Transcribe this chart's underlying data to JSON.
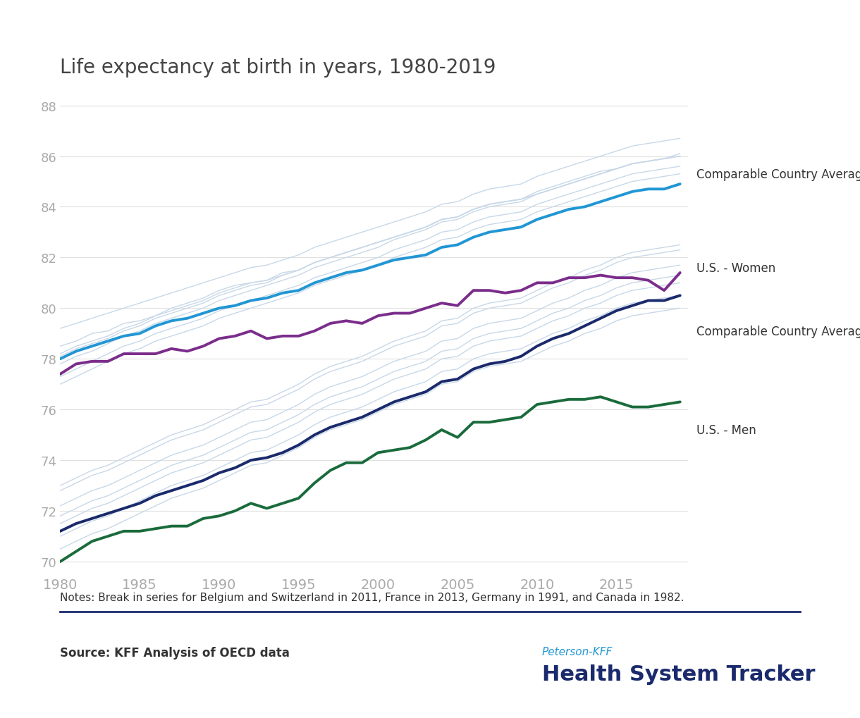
{
  "title": "Life expectancy at birth in years, 1980-2019",
  "notes": "Notes: Break in series for Belgium and Switzerland in 2011, France in 2013, Germany in 1991, and Canada in 1982.",
  "source": "Source: KFF Analysis of OECD data",
  "branding_small": "Peterson-KFF",
  "branding_large": "Health System Tracker",
  "years": [
    1980,
    1981,
    1982,
    1983,
    1984,
    1985,
    1986,
    1987,
    1988,
    1989,
    1990,
    1991,
    1992,
    1993,
    1994,
    1995,
    1996,
    1997,
    1998,
    1999,
    2000,
    2001,
    2002,
    2003,
    2004,
    2005,
    2006,
    2007,
    2008,
    2009,
    2010,
    2011,
    2012,
    2013,
    2014,
    2015,
    2016,
    2017,
    2018,
    2019
  ],
  "us_women": [
    77.4,
    77.8,
    77.9,
    77.9,
    78.2,
    78.2,
    78.2,
    78.4,
    78.3,
    78.5,
    78.8,
    78.9,
    79.1,
    78.8,
    78.9,
    78.9,
    79.1,
    79.4,
    79.5,
    79.4,
    79.7,
    79.8,
    79.8,
    80.0,
    80.2,
    80.1,
    80.7,
    80.7,
    80.6,
    80.7,
    81.0,
    81.0,
    81.2,
    81.2,
    81.3,
    81.2,
    81.2,
    81.1,
    80.7,
    81.4
  ],
  "us_men": [
    70.0,
    70.4,
    70.8,
    71.0,
    71.2,
    71.2,
    71.3,
    71.4,
    71.4,
    71.7,
    71.8,
    72.0,
    72.3,
    72.1,
    72.3,
    72.5,
    73.1,
    73.6,
    73.9,
    73.9,
    74.3,
    74.4,
    74.5,
    74.8,
    75.2,
    74.9,
    75.5,
    75.5,
    75.6,
    75.7,
    76.2,
    76.3,
    76.4,
    76.4,
    76.5,
    76.3,
    76.1,
    76.1,
    76.2,
    76.3
  ],
  "cca_women": [
    78.0,
    78.3,
    78.5,
    78.7,
    78.9,
    79.0,
    79.3,
    79.5,
    79.6,
    79.8,
    80.0,
    80.1,
    80.3,
    80.4,
    80.6,
    80.7,
    81.0,
    81.2,
    81.4,
    81.5,
    81.7,
    81.9,
    82.0,
    82.1,
    82.4,
    82.5,
    82.8,
    83.0,
    83.1,
    83.2,
    83.5,
    83.7,
    83.9,
    84.0,
    84.2,
    84.4,
    84.6,
    84.7,
    84.7,
    84.9
  ],
  "cca_men": [
    71.2,
    71.5,
    71.7,
    71.9,
    72.1,
    72.3,
    72.6,
    72.8,
    73.0,
    73.2,
    73.5,
    73.7,
    74.0,
    74.1,
    74.3,
    74.6,
    75.0,
    75.3,
    75.5,
    75.7,
    76.0,
    76.3,
    76.5,
    76.7,
    77.1,
    77.2,
    77.6,
    77.8,
    77.9,
    78.1,
    78.5,
    78.8,
    79.0,
    79.3,
    79.6,
    79.9,
    80.1,
    80.3,
    80.3,
    80.5
  ],
  "background_lines_women": [
    [
      79.2,
      79.4,
      79.6,
      79.8,
      80.0,
      80.2,
      80.4,
      80.6,
      80.8,
      81.0,
      81.2,
      81.4,
      81.6,
      81.7,
      81.9,
      82.1,
      82.4,
      82.6,
      82.8,
      83.0,
      83.2,
      83.4,
      83.6,
      83.8,
      84.1,
      84.2,
      84.5,
      84.7,
      84.8,
      84.9,
      85.2,
      85.4,
      85.6,
      85.8,
      86.0,
      86.2,
      86.4,
      86.5,
      86.6,
      86.7
    ],
    [
      78.5,
      78.7,
      79.0,
      79.1,
      79.4,
      79.5,
      79.7,
      80.0,
      80.2,
      80.4,
      80.7,
      80.9,
      81.0,
      81.1,
      81.4,
      81.5,
      81.8,
      82.0,
      82.2,
      82.4,
      82.6,
      82.8,
      83.0,
      83.2,
      83.5,
      83.6,
      83.9,
      84.1,
      84.2,
      84.3,
      84.6,
      84.8,
      85.0,
      85.2,
      85.4,
      85.5,
      85.7,
      85.8,
      85.9,
      86.1
    ],
    [
      78.2,
      78.5,
      78.7,
      78.9,
      79.2,
      79.4,
      79.7,
      79.9,
      80.1,
      80.3,
      80.6,
      80.8,
      81.0,
      81.1,
      81.3,
      81.5,
      81.8,
      82.0,
      82.2,
      82.4,
      82.6,
      82.8,
      83.0,
      83.2,
      83.5,
      83.6,
      83.9,
      84.1,
      84.2,
      84.3,
      84.5,
      84.7,
      84.9,
      85.1,
      85.3,
      85.5,
      85.7,
      85.8,
      85.9,
      86.0
    ],
    [
      77.8,
      78.1,
      78.3,
      78.6,
      78.9,
      79.1,
      79.4,
      79.6,
      79.8,
      80.0,
      80.3,
      80.5,
      80.7,
      80.9,
      81.1,
      81.3,
      81.6,
      81.8,
      82.0,
      82.2,
      82.4,
      82.7,
      82.9,
      83.1,
      83.4,
      83.5,
      83.8,
      84.0,
      84.1,
      84.2,
      84.5,
      84.7,
      84.9,
      85.1,
      85.3,
      85.5,
      85.7,
      85.8,
      85.9,
      86.0
    ],
    [
      77.3,
      77.6,
      77.9,
      78.2,
      78.5,
      78.7,
      79.0,
      79.2,
      79.4,
      79.6,
      79.9,
      80.1,
      80.3,
      80.5,
      80.7,
      80.9,
      81.2,
      81.4,
      81.6,
      81.8,
      82.0,
      82.3,
      82.5,
      82.7,
      83.0,
      83.1,
      83.4,
      83.6,
      83.7,
      83.8,
      84.1,
      84.3,
      84.5,
      84.7,
      84.9,
      85.1,
      85.3,
      85.4,
      85.5,
      85.6
    ],
    [
      78.1,
      78.4,
      78.6,
      78.8,
      79.1,
      79.3,
      79.6,
      79.8,
      80.0,
      80.2,
      80.5,
      80.7,
      80.9,
      81.0,
      81.3,
      81.5,
      81.8,
      82.0,
      82.2,
      82.4,
      82.6,
      82.8,
      83.0,
      83.2,
      83.5,
      83.6,
      83.9,
      84.1,
      84.2,
      84.3,
      84.5,
      84.7,
      84.9,
      85.1,
      85.3,
      85.5,
      85.7,
      85.8,
      85.9,
      86.0
    ],
    [
      77.0,
      77.3,
      77.6,
      77.9,
      78.2,
      78.4,
      78.7,
      78.9,
      79.1,
      79.3,
      79.6,
      79.8,
      80.0,
      80.2,
      80.4,
      80.6,
      80.9,
      81.1,
      81.3,
      81.5,
      81.7,
      82.0,
      82.2,
      82.4,
      82.7,
      82.8,
      83.1,
      83.3,
      83.4,
      83.5,
      83.8,
      84.0,
      84.2,
      84.4,
      84.6,
      84.8,
      85.0,
      85.1,
      85.2,
      85.3
    ]
  ],
  "background_lines_men": [
    [
      73.0,
      73.3,
      73.6,
      73.8,
      74.1,
      74.4,
      74.7,
      75.0,
      75.2,
      75.4,
      75.7,
      76.0,
      76.3,
      76.4,
      76.7,
      77.0,
      77.4,
      77.7,
      77.9,
      78.1,
      78.4,
      78.7,
      78.9,
      79.1,
      79.5,
      79.6,
      80.0,
      80.2,
      80.3,
      80.4,
      80.7,
      81.0,
      81.2,
      81.5,
      81.7,
      82.0,
      82.2,
      82.3,
      82.4,
      82.5
    ],
    [
      72.2,
      72.5,
      72.8,
      73.0,
      73.3,
      73.6,
      73.9,
      74.2,
      74.4,
      74.6,
      74.9,
      75.2,
      75.5,
      75.6,
      75.9,
      76.2,
      76.6,
      76.9,
      77.1,
      77.3,
      77.6,
      77.9,
      78.1,
      78.3,
      78.7,
      78.8,
      79.2,
      79.4,
      79.5,
      79.6,
      79.9,
      80.2,
      80.4,
      80.7,
      80.9,
      81.2,
      81.4,
      81.5,
      81.6,
      81.7
    ],
    [
      71.8,
      72.1,
      72.4,
      72.6,
      72.9,
      73.2,
      73.5,
      73.8,
      74.0,
      74.2,
      74.5,
      74.8,
      75.1,
      75.2,
      75.5,
      75.8,
      76.2,
      76.5,
      76.7,
      76.9,
      77.2,
      77.5,
      77.7,
      77.9,
      78.3,
      78.4,
      78.8,
      79.0,
      79.1,
      79.2,
      79.5,
      79.8,
      80.0,
      80.3,
      80.5,
      80.8,
      81.0,
      81.1,
      81.2,
      81.3
    ],
    [
      72.8,
      73.1,
      73.4,
      73.6,
      73.9,
      74.2,
      74.5,
      74.8,
      75.0,
      75.2,
      75.5,
      75.8,
      76.1,
      76.2,
      76.5,
      76.8,
      77.2,
      77.5,
      77.7,
      77.9,
      78.2,
      78.5,
      78.7,
      78.9,
      79.3,
      79.4,
      79.8,
      80.0,
      80.1,
      80.2,
      80.5,
      80.8,
      81.0,
      81.3,
      81.5,
      81.8,
      82.0,
      82.1,
      82.2,
      82.3
    ],
    [
      71.5,
      71.8,
      72.1,
      72.3,
      72.6,
      72.9,
      73.2,
      73.5,
      73.7,
      73.9,
      74.2,
      74.5,
      74.8,
      74.9,
      75.2,
      75.5,
      75.9,
      76.2,
      76.4,
      76.6,
      76.9,
      77.2,
      77.4,
      77.6,
      78.0,
      78.1,
      78.5,
      78.7,
      78.8,
      78.9,
      79.2,
      79.5,
      79.7,
      80.0,
      80.2,
      80.5,
      80.7,
      80.8,
      80.9,
      81.0
    ],
    [
      71.0,
      71.3,
      71.6,
      71.8,
      72.1,
      72.4,
      72.7,
      73.0,
      73.2,
      73.4,
      73.7,
      74.0,
      74.3,
      74.4,
      74.7,
      75.0,
      75.4,
      75.7,
      75.9,
      76.1,
      76.4,
      76.7,
      76.9,
      77.1,
      77.5,
      77.6,
      78.0,
      78.2,
      78.3,
      78.4,
      78.7,
      79.0,
      79.2,
      79.5,
      79.7,
      80.0,
      80.2,
      80.3,
      80.4,
      80.5
    ],
    [
      70.5,
      70.8,
      71.1,
      71.3,
      71.6,
      71.9,
      72.2,
      72.5,
      72.7,
      72.9,
      73.2,
      73.5,
      73.8,
      73.9,
      74.2,
      74.5,
      74.9,
      75.2,
      75.4,
      75.6,
      75.9,
      76.2,
      76.4,
      76.6,
      77.0,
      77.1,
      77.5,
      77.7,
      77.8,
      77.9,
      78.2,
      78.5,
      78.7,
      79.0,
      79.2,
      79.5,
      79.7,
      79.8,
      79.9,
      80.0
    ]
  ],
  "us_women_color": "#7b2d8b",
  "us_men_color": "#1a6b3c",
  "cca_women_color": "#2196d4",
  "cca_men_color": "#1a2a6c",
  "bg_line_color": "#c8d8e8",
  "ylim": [
    69.5,
    88.5
  ],
  "yticks": [
    70,
    72,
    74,
    76,
    78,
    80,
    82,
    84,
    86,
    88
  ],
  "xlim": [
    1980,
    2019.5
  ],
  "xticks": [
    1980,
    1985,
    1990,
    1995,
    2000,
    2005,
    2010,
    2015
  ],
  "title_color": "#444444",
  "tick_color": "#aaaaaa",
  "grid_color": "#e0e0e0",
  "label_color": "#333333",
  "note_color": "#333333",
  "divider_color": "#1a2a6c",
  "source_color": "#333333",
  "branding_small_color": "#2196d4",
  "branding_large_color": "#1a2a6c",
  "label_cca_women": "Comparable Country Average - Wom",
  "label_us_women": "U.S. - Women",
  "label_cca_men": "Comparable Country Average - M",
  "label_us_men": "U.S. - Men"
}
